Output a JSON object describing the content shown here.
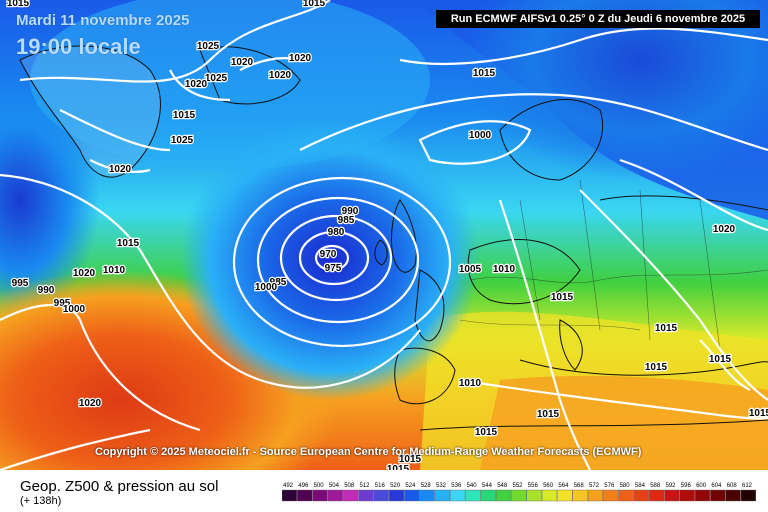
{
  "header": {
    "date": "Mardi 11 novembre 2025",
    "time": "19:00 locale",
    "run": "Run ECMWF AIFSv1 0.25° 0 Z du Jeudi 6 novembre 2025"
  },
  "copyright": "Copyright © 2025 Meteociel.fr - Source European Centre for Medium-Range Weather Forecasts (ECMWF)",
  "footer": {
    "title": "Geop. Z500 & pression au sol",
    "hours": "(+ 138h)"
  },
  "pressure_labels": [
    "1015",
    "1015",
    "1025",
    "1020",
    "1020",
    "1025",
    "1020",
    "1020",
    "1015",
    "1025",
    "1020",
    "1015",
    "1000",
    "990",
    "985",
    "980",
    "970",
    "975",
    "1015",
    "1010",
    "1005",
    "1010",
    "985",
    "990",
    "995",
    "1000",
    "1000",
    "995",
    "1015",
    "1020",
    "1015",
    "1020",
    "1015",
    "1015",
    "1010",
    "1015",
    "1015",
    "1015",
    "1015",
    "1020",
    "1015"
  ],
  "colorbar": {
    "labels": [
      "492",
      "496",
      "500",
      "504",
      "508",
      "512",
      "516",
      "520",
      "524",
      "528",
      "532",
      "536",
      "540",
      "544",
      "548",
      "552",
      "556",
      "560",
      "564",
      "568",
      "572",
      "576",
      "580",
      "584",
      "588",
      "592",
      "596",
      "600",
      "604",
      "608",
      "612"
    ],
    "colors": [
      "#2d0036",
      "#500050",
      "#7a0a78",
      "#a0189a",
      "#c22ab8",
      "#6a3ccf",
      "#4a4ad8",
      "#2a3ad8",
      "#1a5ae8",
      "#1a8af0",
      "#2ab0f6",
      "#3ad6f2",
      "#2ae6b8",
      "#2ad67a",
      "#40d040",
      "#70da30",
      "#a6e22a",
      "#d6ea2a",
      "#f2e228",
      "#f6c424",
      "#f6a020",
      "#f2801a",
      "#ee6018",
      "#e84016",
      "#de2814",
      "#c81414",
      "#b00c0c",
      "#920606",
      "#700404",
      "#4a0202",
      "#200000"
    ]
  },
  "colors": {
    "isobar": "#ffffff",
    "title_text": "#b8dcff"
  }
}
